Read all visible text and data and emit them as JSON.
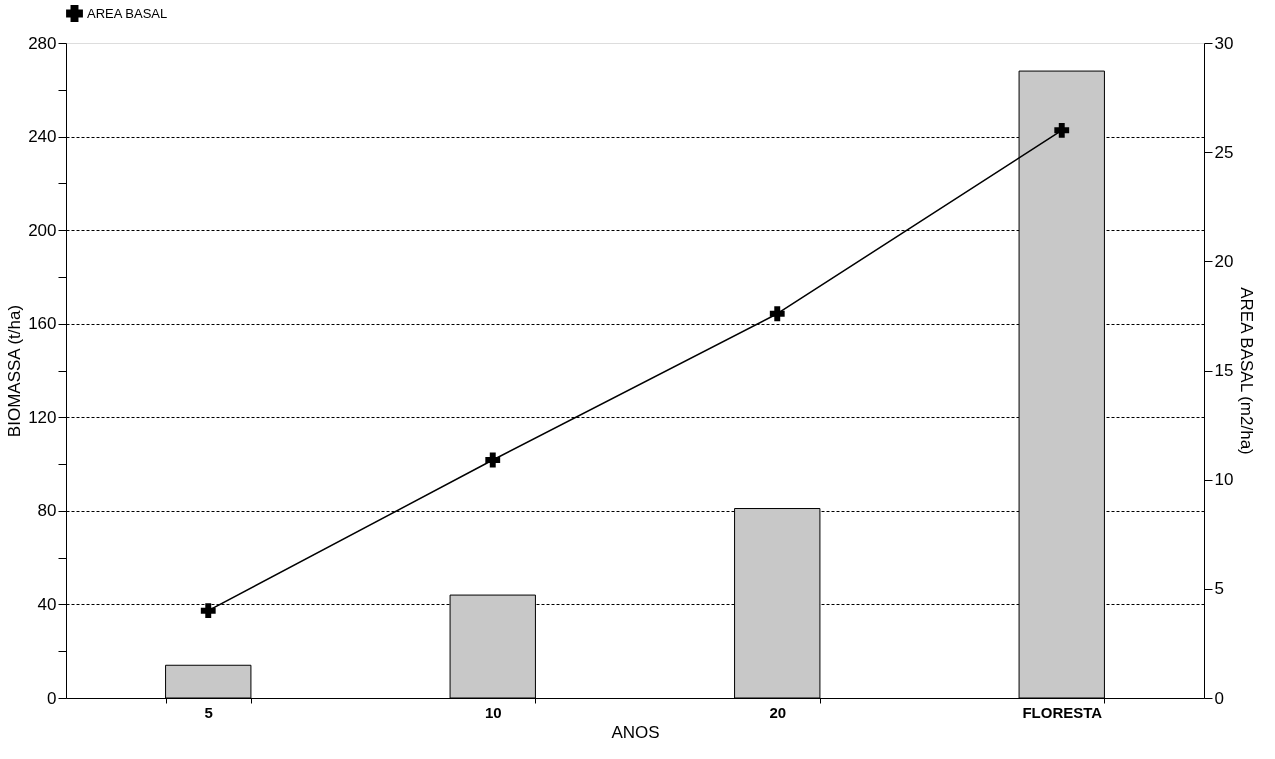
{
  "chart_data": {
    "type": "bar",
    "xlabel": "ANOS",
    "ylabel": "BIOMASSA (t/ha)",
    "y2label": "AREA BASAL (m2/ha)",
    "categories": [
      "5",
      "10",
      "20",
      "FLORESTA"
    ],
    "series": [
      {
        "color": "#c8c8c8",
        "values": [
          14,
          44,
          81,
          268
        ]
      },
      {
        "type": "line",
        "name": "AREA BASAL",
        "color": "#000000",
        "axis": "y2",
        "marker": "cross",
        "line_style": "solid",
        "values": [
          4.0,
          10.9,
          17.6,
          26.0
        ]
      }
    ],
    "ylim": [
      0,
      280
    ],
    "yticks": [
      0,
      {
        "value": 20,
        "label": null
      },
      40,
      {
        "value": 60,
        "label": null
      },
      80,
      {
        "value": 100,
        "label": null
      },
      120,
      {
        "value": 140,
        "label": null
      },
      160,
      {
        "value": 180,
        "label": null
      },
      200,
      {
        "value": 220,
        "label": null
      },
      240,
      {
        "value": 260,
        "label": null
      },
      280
    ],
    "y2lim": [
      0,
      30
    ],
    "y2ticks": [
      0,
      5,
      10,
      15,
      20,
      25,
      30
    ],
    "grid": "y",
    "legend": "top"
  }
}
